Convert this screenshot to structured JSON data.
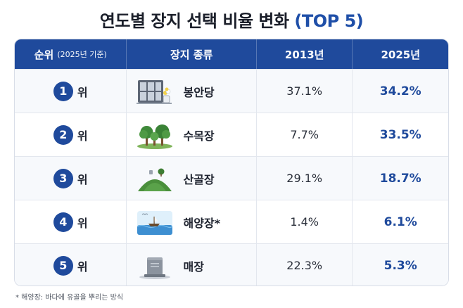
{
  "title": {
    "main": "연도별 장지 선택 비율 변화",
    "accent": "(TOP 5)"
  },
  "header": {
    "rank": "순위",
    "rank_note": "(2025년 기준)",
    "type": "장지 종류",
    "year_a": "2013년",
    "year_b": "2025년"
  },
  "rows": [
    {
      "rank": "1",
      "suffix": "위",
      "icon": "columbarium-icon",
      "type": "봉안당",
      "v2013": "37.1%",
      "v2025": "34.2%"
    },
    {
      "rank": "2",
      "suffix": "위",
      "icon": "tree-burial-icon",
      "type": "수목장",
      "v2013": "7.7%",
      "v2025": "33.5%"
    },
    {
      "rank": "3",
      "suffix": "위",
      "icon": "scattering-hill-icon",
      "type": "산골장",
      "v2013": "29.1%",
      "v2025": "18.7%"
    },
    {
      "rank": "4",
      "suffix": "위",
      "icon": "sea-burial-icon",
      "type": "해양장*",
      "v2013": "1.4%",
      "v2025": "6.1%"
    },
    {
      "rank": "5",
      "suffix": "위",
      "icon": "tombstone-icon",
      "type": "매장",
      "v2013": "22.3%",
      "v2025": "5.3%"
    }
  ],
  "footnote": "* 해양장: 바다에 유골을 뿌리는 방식",
  "colors": {
    "accent": "#1f4a9c",
    "header_bg": "#1f4a9c"
  }
}
